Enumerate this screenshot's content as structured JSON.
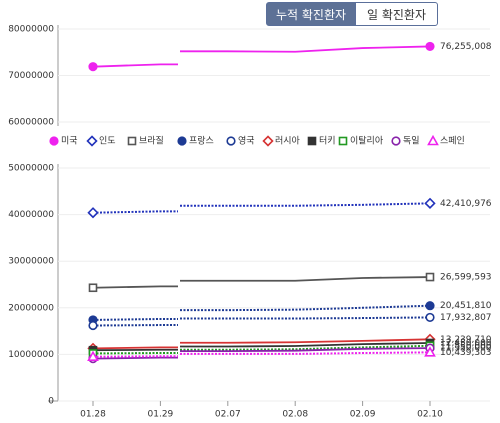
{
  "toggle": [
    "누적 확진환자",
    "일 확진환자"
  ],
  "chart_data": {
    "type": "line",
    "categories": [
      "01.28",
      "01.29",
      "02.07",
      "02.08",
      "02.09",
      "02.10"
    ],
    "upper_ylim": [
      60000000,
      80000000
    ],
    "upper_yticks": [
      60000000,
      70000000,
      80000000
    ],
    "ylim": [
      0,
      50000000
    ],
    "yticks": [
      0,
      10000000,
      20000000,
      30000000,
      40000000,
      50000000
    ],
    "grid": true,
    "series": [
      {
        "name": "미국",
        "color": "#ee22ee",
        "marker": "circle",
        "filled": true,
        "dashed": false,
        "values": [
          71900000,
          72400000,
          75200000,
          75100000,
          75900000,
          76255008
        ],
        "value_labels": [
          null,
          null,
          null,
          null,
          null,
          "76,255,008"
        ]
      },
      {
        "name": "인도",
        "color": "#2233bb",
        "marker": "diamond",
        "filled": false,
        "dashed": true,
        "values": [
          40400000,
          40700000,
          41900000,
          41900000,
          42100000,
          42410976
        ],
        "value_labels": [
          null,
          null,
          null,
          null,
          null,
          "42,410,976"
        ]
      },
      {
        "name": "브라질",
        "color": "#555555",
        "marker": "square",
        "filled": false,
        "dashed": false,
        "values": [
          24300000,
          24600000,
          25800000,
          25800000,
          26400000,
          26599593
        ],
        "value_labels": [
          null,
          null,
          null,
          null,
          null,
          "26,599,593"
        ]
      },
      {
        "name": "프랑스",
        "color": "#1d3a94",
        "marker": "circle",
        "filled": true,
        "dashed": true,
        "values": [
          17400000,
          17600000,
          19500000,
          19600000,
          20000000,
          20451810
        ],
        "value_labels": [
          null,
          null,
          null,
          null,
          null,
          "20,451,810"
        ]
      },
      {
        "name": "영국",
        "color": "#1d3a94",
        "marker": "circle",
        "filled": false,
        "dashed": true,
        "values": [
          16200000,
          16300000,
          17700000,
          17700000,
          17800000,
          17932807
        ],
        "value_labels": [
          null,
          null,
          null,
          null,
          null,
          "17,932,807"
        ]
      },
      {
        "name": "러시아",
        "color": "#d63333",
        "marker": "diamond",
        "filled": false,
        "dashed": false,
        "values": [
          11300000,
          11500000,
          12500000,
          12600000,
          12900000,
          13239710
        ],
        "value_labels": [
          null,
          null,
          null,
          null,
          null,
          "13,239,710"
        ]
      },
      {
        "name": "터키",
        "color": "#333333",
        "marker": "square",
        "filled": true,
        "dashed": false,
        "values": [
          10900000,
          11000000,
          11700000,
          11800000,
          12200000,
          12450000
        ],
        "value_labels": [
          null,
          null,
          null,
          null,
          null,
          "12,450,000"
        ]
      },
      {
        "name": "이탈리아",
        "color": "#229922",
        "marker": "square",
        "filled": false,
        "dashed": true,
        "values": [
          10200000,
          10300000,
          11000000,
          11100000,
          11500000,
          11850000
        ],
        "value_labels": [
          null,
          null,
          null,
          null,
          null,
          "11,850,000"
        ]
      },
      {
        "name": "독일",
        "color": "#8822aa",
        "marker": "circle",
        "filled": false,
        "dashed": false,
        "values": [
          9100000,
          9300000,
          10700000,
          10800000,
          11200000,
          11350000
        ],
        "value_labels": [
          null,
          null,
          null,
          null,
          null,
          "11,350,000"
        ]
      },
      {
        "name": "스페인",
        "color": "#ee22ee",
        "marker": "triangle",
        "filled": false,
        "dashed": true,
        "values": [
          9500000,
          9600000,
          10100000,
          10100000,
          10300000,
          10439303
        ],
        "value_labels": [
          null,
          null,
          null,
          null,
          null,
          "10,439,303"
        ]
      }
    ]
  }
}
